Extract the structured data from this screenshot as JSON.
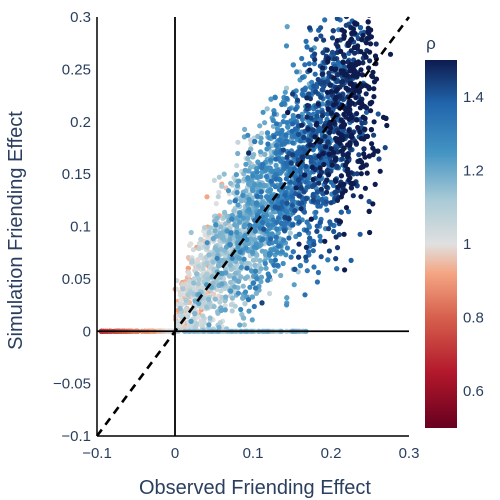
{
  "chart_data": {
    "type": "scatter",
    "title": "",
    "xlabel": "Observed Friending Effect",
    "ylabel": "Simulation Friending Effect",
    "xlim": [
      -0.1,
      0.3
    ],
    "ylim": [
      -0.1,
      0.3
    ],
    "x_ticks": [
      -0.1,
      0,
      0.1,
      0.2,
      0.3
    ],
    "x_tick_labels": [
      "−0.1",
      "0",
      "0.1",
      "0.2",
      "0.3"
    ],
    "y_ticks": [
      -0.1,
      -0.05,
      0,
      0.05,
      0.1,
      0.15,
      0.2,
      0.25,
      0.3
    ],
    "y_tick_labels": [
      "−0.1",
      "−0.05",
      "0",
      "0.05",
      "0.1",
      "0.15",
      "0.2",
      "0.25",
      "0.3"
    ],
    "grid": false,
    "zero_lines": true,
    "reference_line": {
      "style": "dashed",
      "from": [
        -0.1,
        -0.1
      ],
      "to": [
        0.3,
        0.3
      ],
      "color": "#000000"
    },
    "colorbar": {
      "title": "ρ",
      "range": [
        0.5,
        1.5
      ],
      "ticks": [
        0.6,
        0.8,
        1,
        1.2,
        1.4
      ],
      "tick_labels": [
        "0.6",
        "0.8",
        "1",
        "1.2",
        "1.4"
      ],
      "placement": "right",
      "colorscale": [
        [
          0.0,
          "#67001f"
        ],
        [
          0.15,
          "#b2182b"
        ],
        [
          0.3,
          "#d6604d"
        ],
        [
          0.42,
          "#f4a582"
        ],
        [
          0.5,
          "#e0e0e0"
        ],
        [
          0.62,
          "#a9cad6"
        ],
        [
          0.75,
          "#4393c3"
        ],
        [
          0.88,
          "#2166ac"
        ],
        [
          1.0,
          "#0d1b4f"
        ]
      ]
    },
    "trend": {
      "slope": 1.0,
      "intercept": 0.0,
      "x_range": [
        -0.1,
        0.3
      ],
      "y_spread": 0.06,
      "point_count": 3200
    }
  }
}
